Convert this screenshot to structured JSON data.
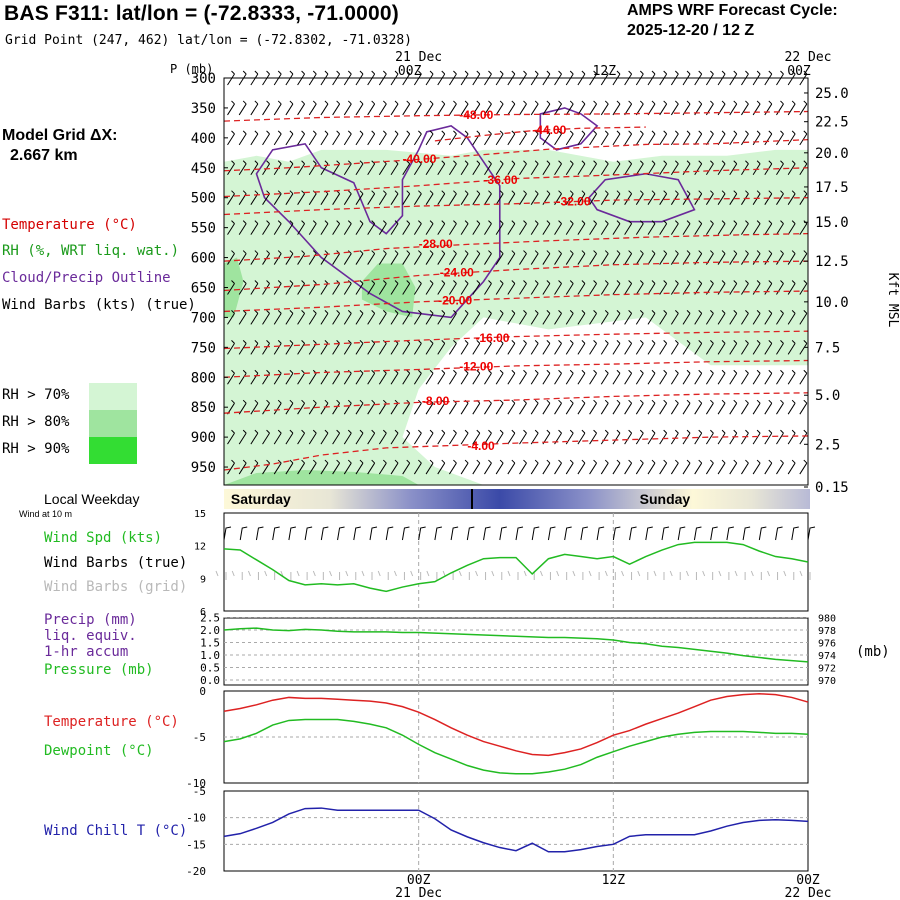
{
  "header": {
    "title": "BAS F311:  lat/lon = (-72.8333, -71.0000)",
    "subtitle": "Grid Point (247, 462) lat/lon = (-72.8302, -71.0328)",
    "cycle_label": "AMPS WRF Forecast Cycle:",
    "cycle_value": "2025-12-20 / 12  Z"
  },
  "left_panel": {
    "model_grid_label": "Model Grid ΔX:",
    "model_grid_value": "2.667 km",
    "legend": [
      {
        "text": "Temperature (°C)",
        "color": "#d40000"
      },
      {
        "text": "RH (%, WRT liq. wat.)",
        "color": "#1a9a1a"
      },
      {
        "text": "Cloud/Precip Outline",
        "color": "#6a2a9a"
      },
      {
        "text": "Wind Barbs (kts) (true)",
        "color": "#000000"
      }
    ],
    "rh_legend": [
      {
        "text": "RH > 70%",
        "color": "#d4f5d4"
      },
      {
        "text": "RH > 80%",
        "color": "#9fe49f"
      },
      {
        "text": "RH > 90%",
        "color": "#33dd33"
      }
    ]
  },
  "time_axis": {
    "top_labels": [
      {
        "day": "21 Dec",
        "hour": "00Z",
        "t": 12
      },
      {
        "day": "",
        "hour": "12Z",
        "t": 24
      },
      {
        "day": "22 Dec",
        "hour": "00Z",
        "t": 36
      }
    ],
    "bottom_labels": [
      {
        "day": "21 Dec",
        "hour": "00Z",
        "t": 12
      },
      {
        "day": "",
        "hour": "12Z",
        "t": 24
      },
      {
        "day": "22 Dec",
        "hour": "00Z",
        "t": 36
      }
    ],
    "t_start": 0,
    "t_end": 36
  },
  "local_weekday": {
    "label": "Local Weekday",
    "sublabel": "Wind at 10 m",
    "days": [
      {
        "text": "Saturday",
        "t": 0.3
      },
      {
        "text": "Sunday",
        "t": 25.5
      }
    ]
  },
  "chart_data": [
    {
      "type": "cross-section",
      "ylabel": "P (mb)",
      "ylabel_right": "Kft MSL",
      "y_ticks": [
        300,
        350,
        400,
        450,
        500,
        550,
        600,
        650,
        700,
        750,
        800,
        850,
        900,
        950
      ],
      "y_range": [
        300,
        980
      ],
      "right_ticks": [
        {
          "label": "25.0",
          "p": 325
        },
        {
          "label": "22.5",
          "p": 373
        },
        {
          "label": "20.0",
          "p": 425
        },
        {
          "label": "17.5",
          "p": 482
        },
        {
          "label": "15.0",
          "p": 541
        },
        {
          "label": "12.5",
          "p": 606
        },
        {
          "label": "10.0",
          "p": 674
        },
        {
          "label": "7.5",
          "p": 750
        },
        {
          "label": "5.0",
          "p": 830
        },
        {
          "label": "2.5",
          "p": 912
        },
        {
          "label": "0.15",
          "p": 1000
        }
      ],
      "temperature_contours": [
        {
          "label": "-48.00",
          "t": 14.5,
          "p": 362,
          "points": [
            [
              0,
              372
            ],
            [
              6,
              366
            ],
            [
              12,
              363
            ],
            [
              18,
              361
            ],
            [
              24,
              360
            ],
            [
              30,
              358
            ],
            [
              36,
              356
            ]
          ]
        },
        {
          "label": "-44.00",
          "t": 19.0,
          "p": 387,
          "points": [
            [
              13,
              405
            ],
            [
              16,
              396
            ],
            [
              19,
              388
            ],
            [
              22,
              384
            ],
            [
              26,
              382
            ]
          ]
        },
        {
          "label": "-40.00",
          "t": 11.0,
          "p": 435,
          "points": [
            [
              0,
              455
            ],
            [
              4,
              450
            ],
            [
              8,
              443
            ],
            [
              12,
              436
            ],
            [
              16,
              428
            ],
            [
              20,
              419
            ],
            [
              26,
              411
            ],
            [
              30,
              410
            ],
            [
              36,
              403
            ]
          ]
        },
        {
          "label": "-36.00",
          "t": 16.0,
          "p": 470,
          "points": [
            [
              0,
              498
            ],
            [
              6,
              490
            ],
            [
              12,
              480
            ],
            [
              18,
              468
            ],
            [
              24,
              462
            ],
            [
              30,
              455
            ],
            [
              36,
              450
            ]
          ]
        },
        {
          "label": "-32.00",
          "t": 20.5,
          "p": 506,
          "points": [
            [
              0,
              528
            ],
            [
              6,
              520
            ],
            [
              12,
              514
            ],
            [
              18,
              510
            ],
            [
              24,
              504
            ],
            [
              30,
              502
            ],
            [
              36,
              500
            ]
          ]
        },
        {
          "label": "-28.00",
          "t": 12.0,
          "p": 577,
          "points": [
            [
              0,
              606
            ],
            [
              5,
              598
            ],
            [
              10,
              585
            ],
            [
              15,
              578
            ],
            [
              20,
              572
            ],
            [
              26,
              566
            ],
            [
              32,
              562
            ],
            [
              36,
              560
            ]
          ]
        },
        {
          "label": "-24.00",
          "t": 13.3,
          "p": 625,
          "points": [
            [
              0,
              655
            ],
            [
              6,
              645
            ],
            [
              12,
              630
            ],
            [
              18,
              620
            ],
            [
              24,
              612
            ],
            [
              30,
              608
            ],
            [
              36,
              606
            ]
          ]
        },
        {
          "label": "-20.00",
          "t": 13.2,
          "p": 672,
          "points": [
            [
              0,
              690
            ],
            [
              6,
              683
            ],
            [
              12,
              674
            ],
            [
              18,
              668
            ],
            [
              24,
              662
            ],
            [
              30,
              658
            ],
            [
              36,
              656
            ]
          ]
        },
        {
          "label": "-16.00",
          "t": 15.5,
          "p": 734,
          "points": [
            [
              0,
              752
            ],
            [
              6,
              745
            ],
            [
              12,
              738
            ],
            [
              18,
              732
            ],
            [
              24,
              728
            ],
            [
              30,
              725
            ],
            [
              36,
              723
            ]
          ]
        },
        {
          "label": "-12.00",
          "t": 14.5,
          "p": 782,
          "points": [
            [
              0,
              800
            ],
            [
              6,
              792
            ],
            [
              12,
              787
            ],
            [
              18,
              781
            ],
            [
              24,
              778
            ],
            [
              30,
              774
            ],
            [
              36,
              772
            ]
          ]
        },
        {
          "label": "-8.00",
          "t": 12.2,
          "p": 840,
          "points": [
            [
              0,
              860
            ],
            [
              6,
              850
            ],
            [
              12,
              842
            ],
            [
              18,
              838
            ],
            [
              24,
              832
            ],
            [
              30,
              828
            ],
            [
              36,
              826
            ]
          ]
        },
        {
          "label": "-4.00",
          "t": 15.0,
          "p": 915,
          "points": [
            [
              0,
              955
            ],
            [
              3,
              945
            ],
            [
              6,
              930
            ],
            [
              10,
              918
            ],
            [
              14,
              914
            ],
            [
              18,
              910
            ],
            [
              24,
              905
            ],
            [
              30,
              900
            ],
            [
              36,
              898
            ]
          ]
        }
      ],
      "wind_barb_counts": {
        "columns": 50,
        "rows": 14
      }
    },
    {
      "type": "line",
      "name": "wind",
      "yrange": [
        6,
        15
      ],
      "y_ticks": [
        6,
        9,
        12,
        15
      ],
      "labels": [
        "Wind Spd (kts)",
        "Wind Barbs (true)",
        "Wind Barbs (grid)"
      ],
      "series": [
        {
          "name": "Wind Spd (kts)",
          "color": "#22bb22",
          "x": [
            0,
            1,
            2,
            3,
            4,
            5,
            6,
            7,
            8,
            9,
            10,
            11,
            12,
            13,
            14,
            15,
            16,
            17,
            18,
            19,
            20,
            21,
            22,
            23,
            24,
            25,
            26,
            27,
            28,
            29,
            30,
            31,
            32,
            33,
            34,
            35,
            36
          ],
          "values": [
            11.7,
            11.6,
            10.7,
            9.8,
            8.8,
            8.4,
            8.5,
            8.4,
            8.5,
            8.1,
            7.8,
            8.2,
            8.5,
            8.7,
            9.5,
            10.2,
            10.8,
            10.9,
            10.9,
            9.4,
            10.8,
            11.2,
            11.0,
            10.8,
            11.0,
            10.3,
            11.0,
            11.6,
            12.1,
            12.3,
            12.3,
            12.3,
            12.1,
            11.5,
            11.0,
            10.8,
            10.5
          ]
        }
      ]
    },
    {
      "type": "line",
      "name": "precip_pressure",
      "labels": [
        "Precip (mm)",
        "liq. equiv.",
        "1-hr accum",
        "Pressure (mb)"
      ],
      "left_ticks": [
        "0.0",
        "0.5",
        "1.0",
        "1.5",
        "2.0",
        "2.5"
      ],
      "right_ticks": [
        "970",
        "972",
        "974",
        "976",
        "978",
        "980"
      ],
      "right_unit": "(mb)",
      "pressure_range": [
        970,
        980
      ],
      "series": [
        {
          "name": "Pressure (mb)",
          "color": "#22bb22",
          "x": [
            0,
            1,
            2,
            3,
            4,
            5,
            6,
            7,
            8,
            9,
            10,
            11,
            12,
            13,
            14,
            15,
            16,
            17,
            18,
            19,
            20,
            21,
            22,
            23,
            24,
            25,
            26,
            27,
            28,
            29,
            30,
            31,
            32,
            33,
            34,
            35,
            36
          ],
          "values": [
            978.0,
            978.2,
            978.3,
            978.0,
            977.9,
            978.1,
            978.0,
            977.8,
            977.7,
            977.7,
            977.7,
            977.6,
            977.6,
            977.5,
            977.4,
            977.3,
            977.2,
            977.1,
            977.0,
            976.9,
            976.8,
            976.8,
            976.7,
            976.6,
            976.4,
            976.0,
            975.8,
            975.4,
            975.2,
            974.9,
            974.6,
            974.3,
            973.9,
            973.6,
            973.3,
            973.1,
            972.9
          ]
        }
      ],
      "precip_values": []
    },
    {
      "type": "line",
      "name": "temperature",
      "labels": [
        "Temperature (°C)",
        "Dewpoint (°C)"
      ],
      "y_ticks": [
        "0",
        "-5",
        "-10"
      ],
      "yrange": [
        -10,
        0
      ],
      "series": [
        {
          "name": "Temperature (°C)",
          "color": "#dd2222",
          "x": [
            0,
            1,
            2,
            3,
            4,
            5,
            6,
            7,
            8,
            9,
            10,
            11,
            12,
            13,
            14,
            15,
            16,
            17,
            18,
            19,
            20,
            21,
            22,
            23,
            24,
            25,
            26,
            27,
            28,
            29,
            30,
            31,
            32,
            33,
            34,
            35,
            36
          ],
          "values": [
            -2.2,
            -1.9,
            -1.5,
            -1.0,
            -0.7,
            -0.8,
            -0.8,
            -0.9,
            -1.0,
            -1.1,
            -1.3,
            -1.7,
            -2.3,
            -3.1,
            -4.0,
            -4.8,
            -5.5,
            -6.0,
            -6.5,
            -6.9,
            -7.0,
            -6.7,
            -6.3,
            -5.6,
            -4.8,
            -4.3,
            -3.6,
            -3.0,
            -2.4,
            -1.7,
            -1.0,
            -0.6,
            -0.4,
            -0.3,
            -0.4,
            -0.7,
            -1.2
          ]
        },
        {
          "name": "Dewpoint (°C)",
          "color": "#22bb22",
          "x": [
            0,
            1,
            2,
            3,
            4,
            5,
            6,
            7,
            8,
            9,
            10,
            11,
            12,
            13,
            14,
            15,
            16,
            17,
            18,
            19,
            20,
            21,
            22,
            23,
            24,
            25,
            26,
            27,
            28,
            29,
            30,
            31,
            32,
            33,
            34,
            35,
            36
          ],
          "values": [
            -5.5,
            -5.2,
            -4.6,
            -3.7,
            -3.2,
            -3.1,
            -3.1,
            -3.1,
            -3.3,
            -3.6,
            -4.0,
            -4.8,
            -5.8,
            -6.7,
            -7.4,
            -8.1,
            -8.6,
            -8.9,
            -9.0,
            -9.0,
            -8.8,
            -8.5,
            -8.0,
            -7.2,
            -6.6,
            -6.0,
            -5.5,
            -5.0,
            -4.7,
            -4.5,
            -4.4,
            -4.4,
            -4.4,
            -4.5,
            -4.6,
            -4.6,
            -4.7
          ]
        }
      ]
    },
    {
      "type": "line",
      "name": "wind_chill",
      "labels": [
        "Wind Chill T (°C)"
      ],
      "y_ticks": [
        "-5",
        "-10",
        "-15",
        "-20"
      ],
      "yrange": [
        -20,
        -5
      ],
      "series": [
        {
          "name": "Wind Chill T (°C)",
          "color": "#2222aa",
          "x": [
            0,
            1,
            2,
            3,
            4,
            5,
            6,
            7,
            8,
            9,
            10,
            11,
            12,
            13,
            14,
            15,
            16,
            17,
            18,
            19,
            20,
            21,
            22,
            23,
            24,
            25,
            26,
            27,
            28,
            29,
            30,
            31,
            32,
            33,
            34,
            35,
            36
          ],
          "values": [
            -13.5,
            -13.0,
            -12.0,
            -10.9,
            -9.3,
            -8.3,
            -8.2,
            -8.6,
            -8.6,
            -8.6,
            -8.6,
            -8.6,
            -8.6,
            -10.2,
            -12.3,
            -13.6,
            -14.7,
            -15.6,
            -16.2,
            -14.8,
            -16.4,
            -16.4,
            -16.0,
            -15.4,
            -15.0,
            -13.5,
            -13.2,
            -13.2,
            -13.2,
            -13.2,
            -12.5,
            -11.6,
            -10.9,
            -10.5,
            -10.4,
            -10.5,
            -10.7
          ]
        }
      ]
    }
  ]
}
